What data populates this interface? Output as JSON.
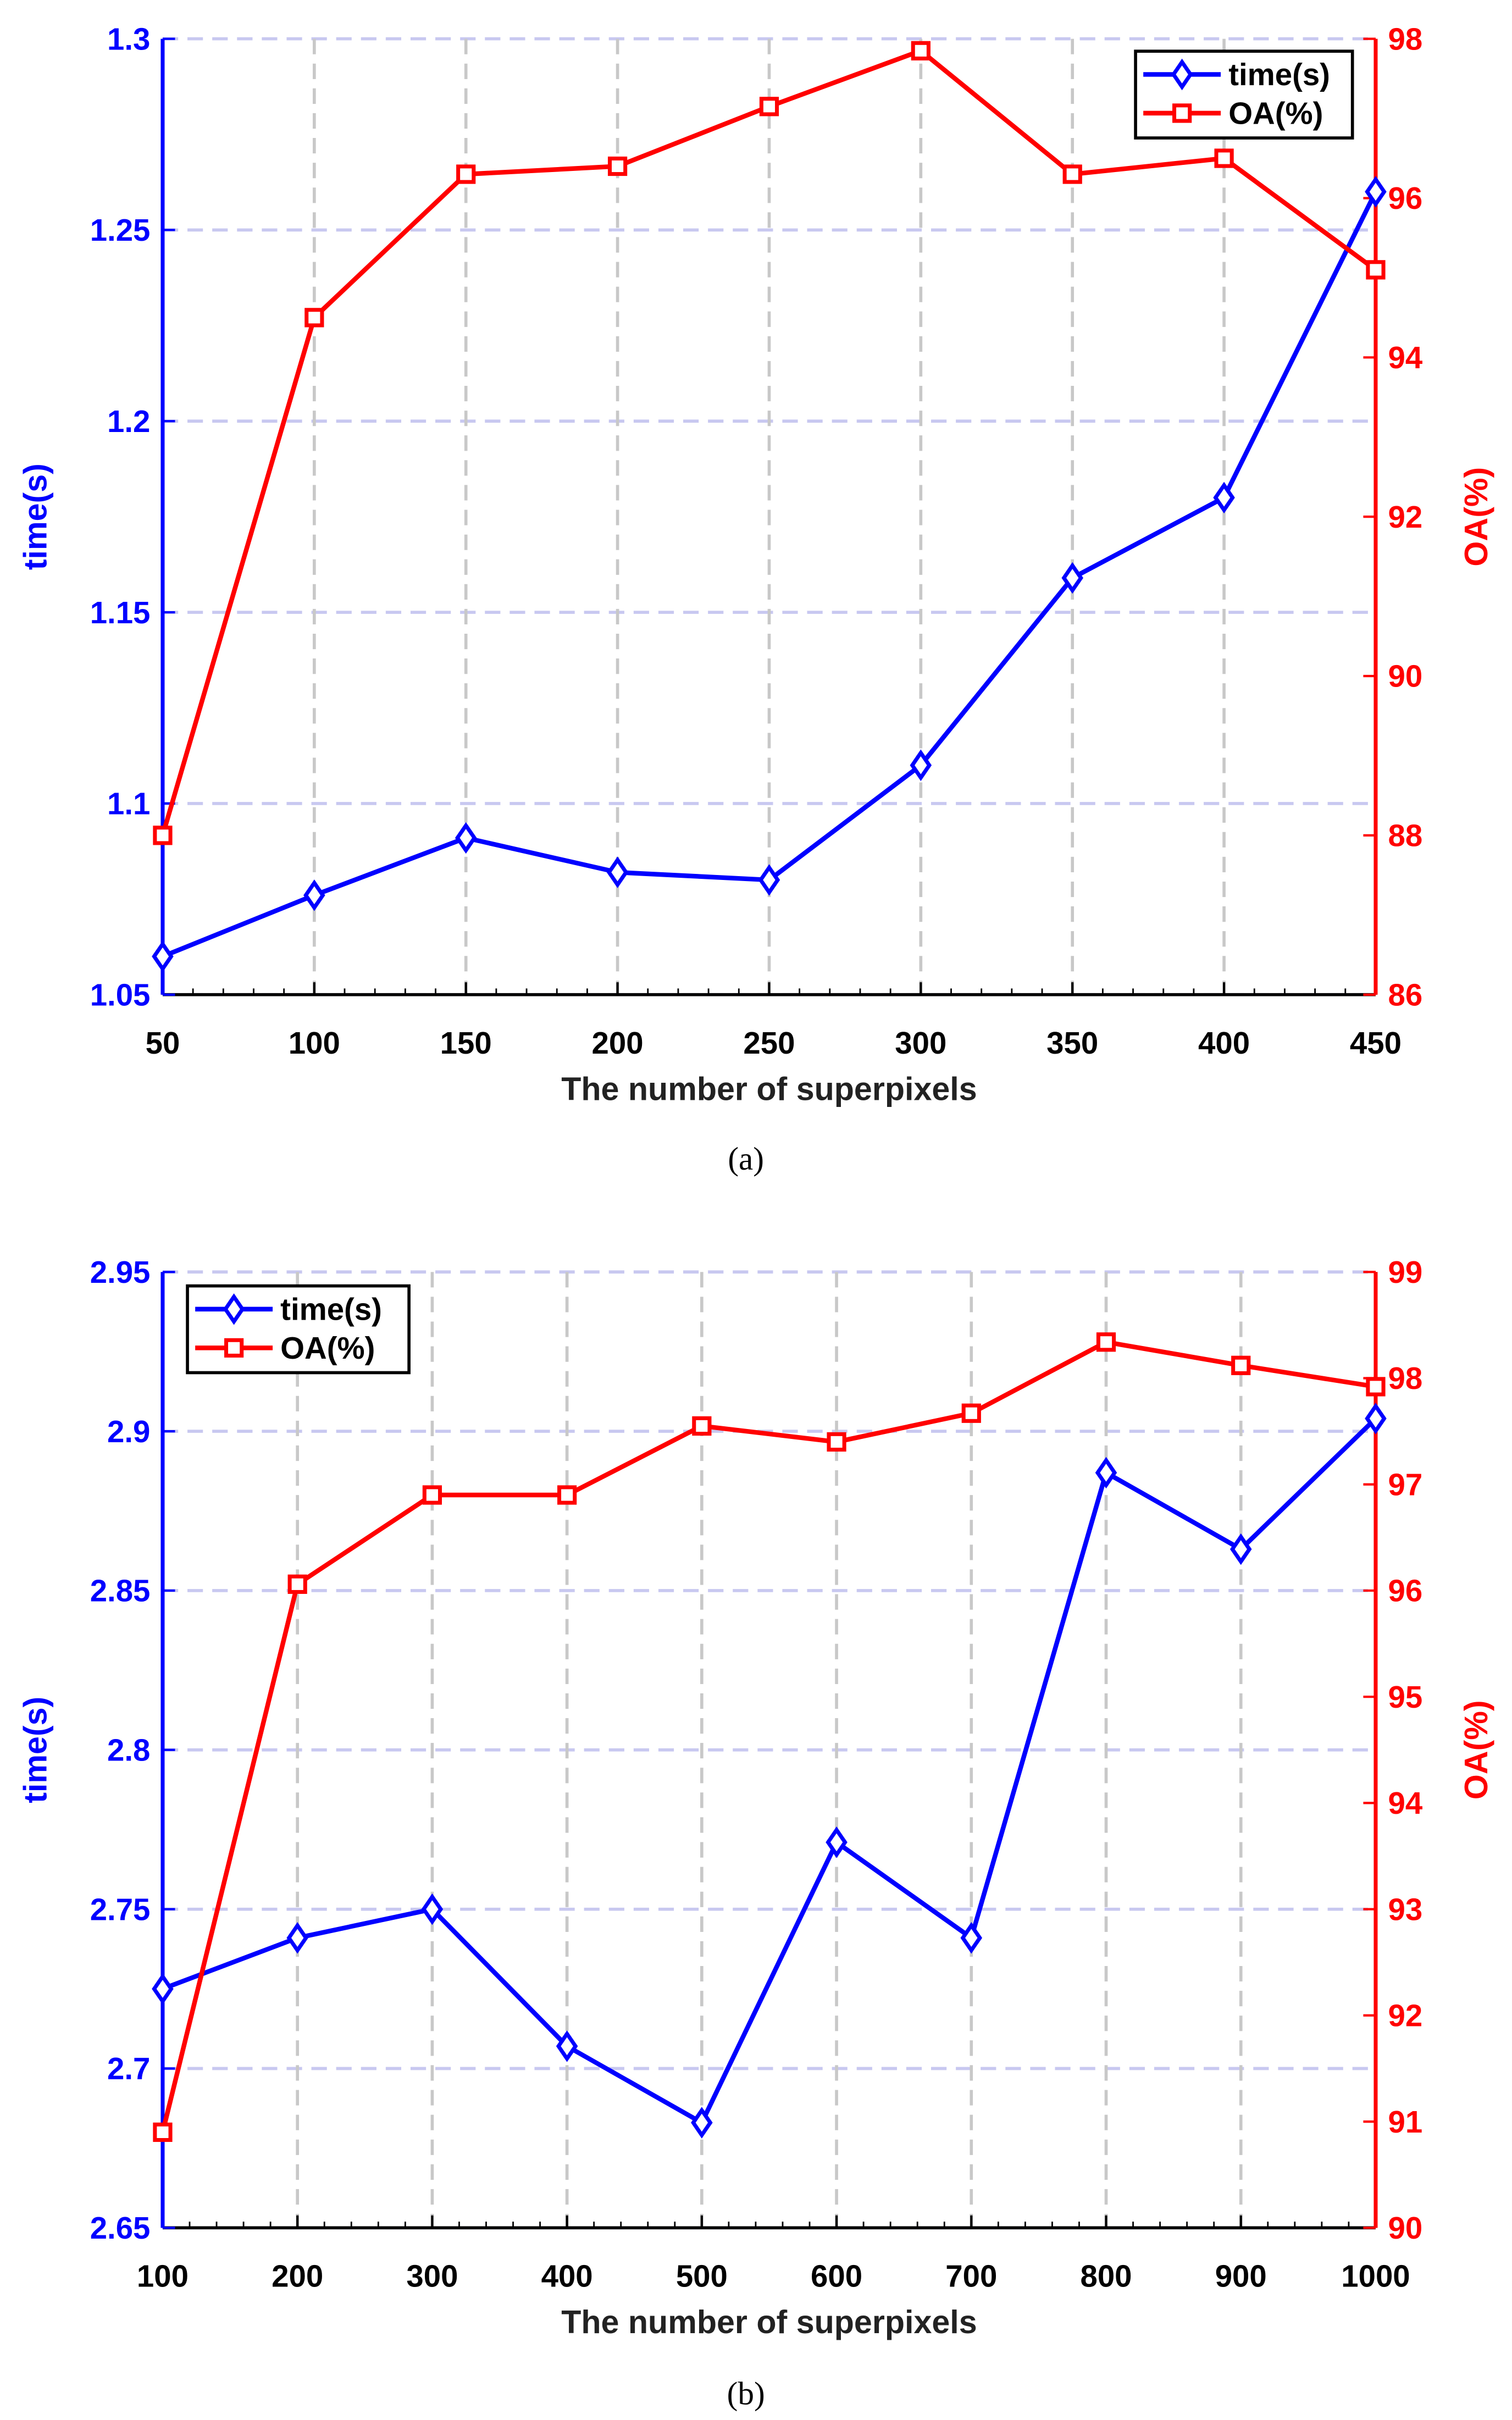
{
  "colors": {
    "time": "#0000ff",
    "oa": "#ff0000",
    "grid_h": "#c8c8f0",
    "grid_v": "#c8c8c8"
  },
  "chart_data": [
    {
      "type": "line",
      "caption": "(a)",
      "xlabel": "The number of superpixels",
      "ylabel": "time(s)",
      "y2label": "OA(%)",
      "x": [
        50,
        100,
        150,
        200,
        250,
        300,
        350,
        400,
        450
      ],
      "xlim": [
        50,
        450
      ],
      "xticks": [
        "50",
        "100",
        "150",
        "200",
        "250",
        "300",
        "350",
        "400",
        "450"
      ],
      "ylim": [
        1.05,
        1.3
      ],
      "yticks": [
        "1.05",
        "1.1",
        "1.15",
        "1.2",
        "1.25",
        "1.3"
      ],
      "y2lim": [
        86,
        98
      ],
      "y2ticks": [
        "86",
        "88",
        "90",
        "92",
        "94",
        "96",
        "98"
      ],
      "grid": true,
      "legend": "top-right",
      "series": [
        {
          "name": "time(s)",
          "axis": "left",
          "marker": "diamond",
          "values": [
            1.06,
            1.076,
            1.091,
            1.082,
            1.08,
            1.11,
            1.159,
            1.18,
            1.26
          ]
        },
        {
          "name": "OA(%)",
          "axis": "right",
          "marker": "square",
          "values": [
            88.0,
            94.5,
            96.3,
            96.4,
            97.15,
            97.85,
            96.3,
            96.5,
            95.1
          ]
        }
      ]
    },
    {
      "type": "line",
      "caption": "(b)",
      "xlabel": "The number of superpixels",
      "ylabel": "time(s)",
      "y2label": "OA(%)",
      "x": [
        100,
        200,
        300,
        400,
        500,
        600,
        700,
        800,
        900,
        1000
      ],
      "xlim": [
        100,
        1000
      ],
      "xticks": [
        "100",
        "200",
        "300",
        "400",
        "500",
        "600",
        "700",
        "800",
        "900",
        "1000"
      ],
      "ylim": [
        2.65,
        2.95
      ],
      "yticks": [
        "2.65",
        "2.7",
        "2.75",
        "2.8",
        "2.85",
        "2.9",
        "2.95"
      ],
      "y2lim": [
        90,
        99
      ],
      "y2ticks": [
        "90",
        "91",
        "92",
        "93",
        "94",
        "95",
        "96",
        "97",
        "98",
        "99"
      ],
      "grid": true,
      "legend": "top-left",
      "series": [
        {
          "name": "time(s)",
          "axis": "left",
          "marker": "diamond",
          "values": [
            2.725,
            2.741,
            2.75,
            2.707,
            2.683,
            2.771,
            2.741,
            2.887,
            2.863,
            2.904
          ]
        },
        {
          "name": "OA(%)",
          "axis": "right",
          "marker": "square",
          "values": [
            90.9,
            96.06,
            96.9,
            96.9,
            97.55,
            97.4,
            97.67,
            98.34,
            98.12,
            97.92
          ]
        }
      ]
    }
  ]
}
